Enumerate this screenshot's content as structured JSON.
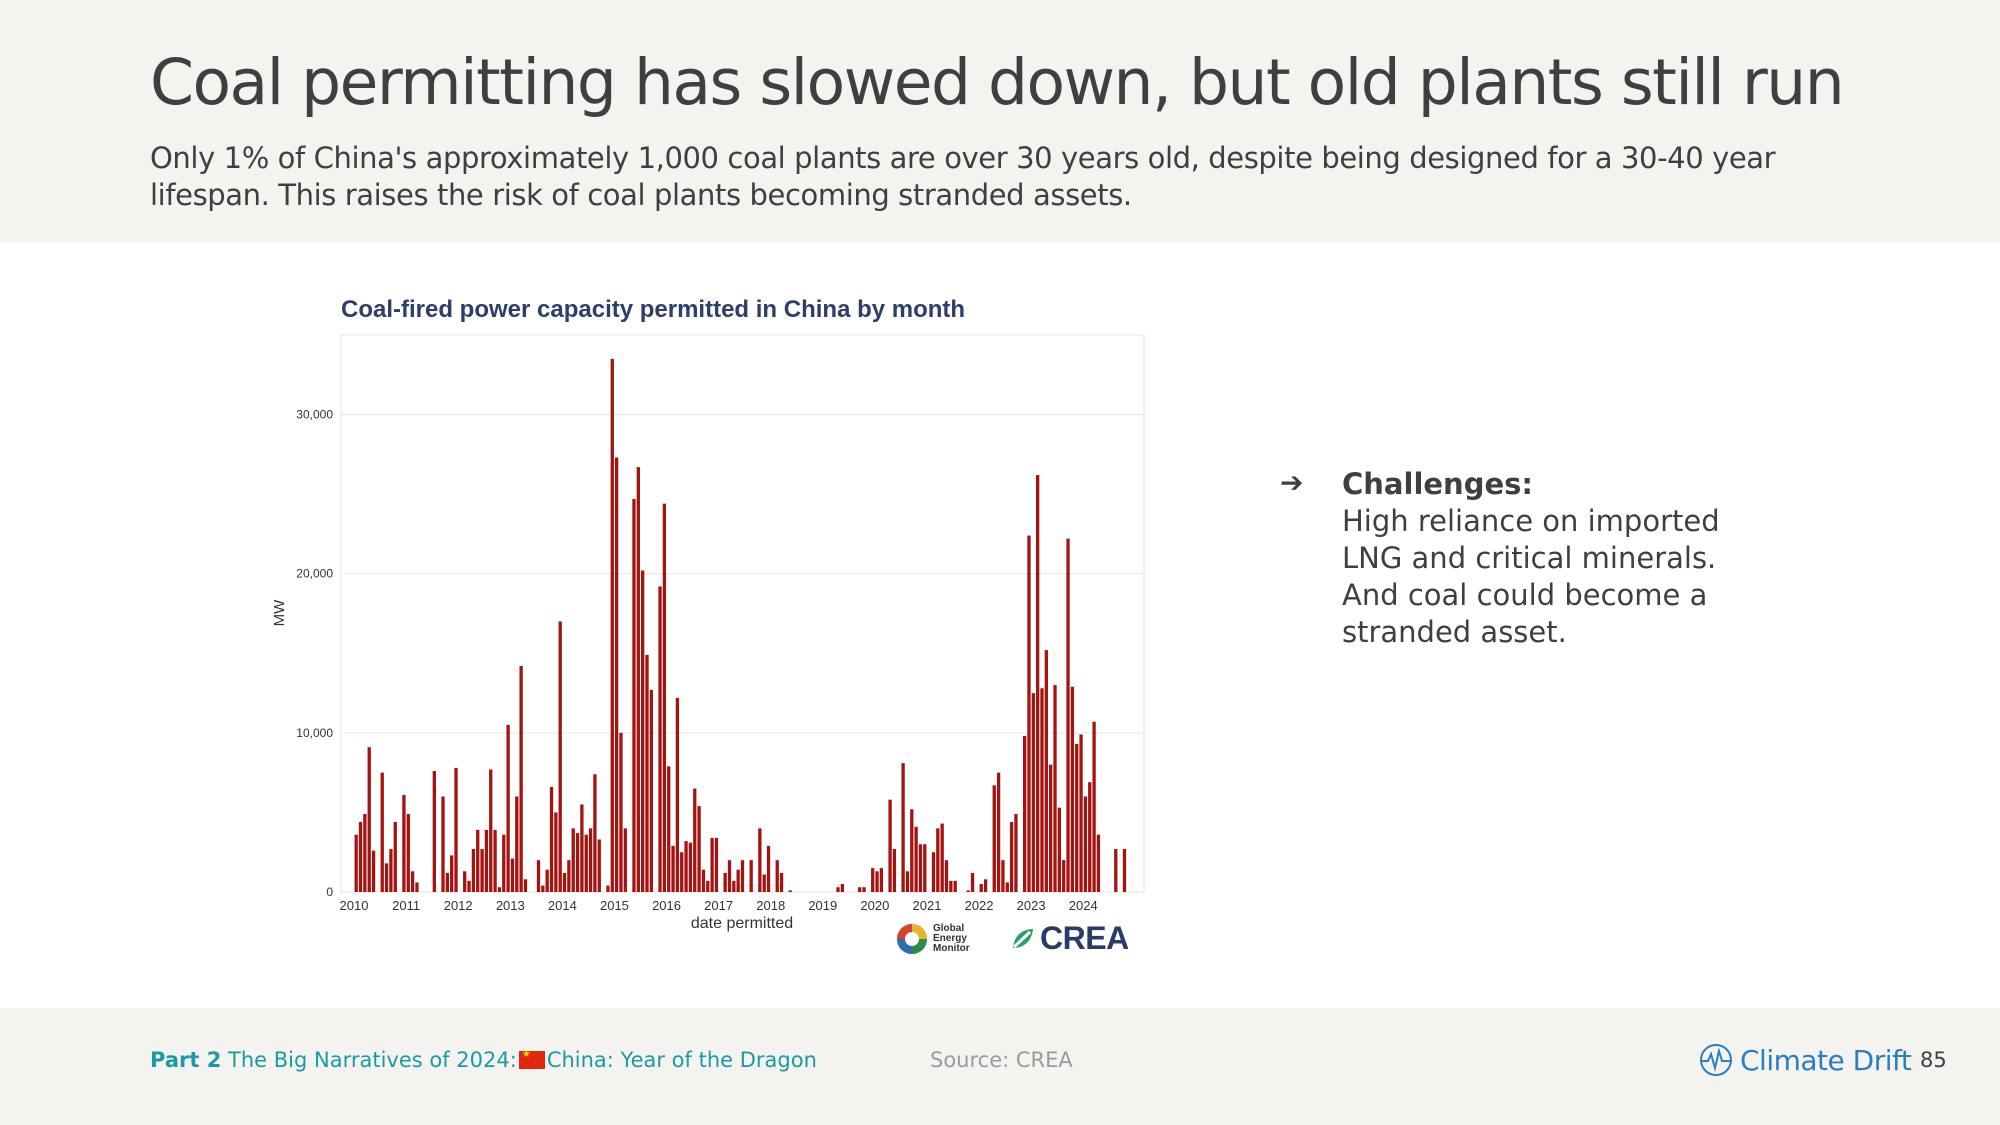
{
  "header": {
    "title": "Coal permitting has slowed down, but old plants still run",
    "subtitle": "Only 1% of China's approximately 1,000 coal plants are over 30 years old, despite being designed for a 30-40 year lifespan. This raises the risk of coal plants becoming stranded assets."
  },
  "chart_data": {
    "type": "bar",
    "title": "Coal-fired power capacity permitted in China by month",
    "xlabel": "date permitted",
    "ylabel": "MW",
    "ylim": [
      0,
      35000
    ],
    "yticks": [
      0,
      10000,
      20000,
      30000
    ],
    "ytick_labels": [
      "0",
      "10,000",
      "20,000",
      "30,000"
    ],
    "x_start": "2010-01",
    "xlim": [
      "2009-10",
      "2025-03"
    ],
    "xtick_labels": [
      "2010",
      "2011",
      "2012",
      "2013",
      "2014",
      "2015",
      "2016",
      "2017",
      "2018",
      "2019",
      "2020",
      "2021",
      "2022",
      "2023",
      "2024"
    ],
    "bar_color": "#a4130f",
    "grid": true,
    "values": [
      3600,
      4400,
      4900,
      9100,
      2600,
      0,
      7500,
      1800,
      2700,
      4400,
      0,
      6100,
      4900,
      1300,
      600,
      0,
      0,
      0,
      7600,
      0,
      6000,
      1200,
      2300,
      7800,
      0,
      1300,
      700,
      2700,
      3900,
      2700,
      3900,
      7700,
      3900,
      300,
      3600,
      10500,
      2100,
      6000,
      14200,
      800,
      0,
      0,
      2000,
      400,
      1400,
      6600,
      5000,
      17000,
      1200,
      2000,
      4000,
      3700,
      5500,
      3600,
      4000,
      7400,
      3300,
      0,
      400,
      33500,
      27300,
      10000,
      4000,
      0,
      24700,
      26700,
      20200,
      14900,
      12700,
      0,
      19200,
      24400,
      7900,
      2900,
      12200,
      2500,
      3200,
      3100,
      6500,
      5400,
      1400,
      700,
      3400,
      3400,
      0,
      1200,
      2000,
      700,
      1400,
      2000,
      0,
      2000,
      0,
      4000,
      1100,
      2900,
      0,
      2000,
      1200,
      0,
      100,
      0,
      0,
      0,
      0,
      0,
      0,
      0,
      0,
      0,
      0,
      300,
      500,
      0,
      0,
      0,
      300,
      300,
      0,
      1500,
      1300,
      1500,
      0,
      5800,
      2700,
      0,
      8100,
      1300,
      5200,
      4100,
      3000,
      3000,
      0,
      2500,
      4000,
      4300,
      2000,
      700,
      700,
      0,
      0,
      100,
      1200,
      0,
      500,
      800,
      0,
      6700,
      7500,
      2000,
      600,
      4400,
      4900,
      0,
      9800,
      22400,
      12500,
      26200,
      12800,
      15200,
      8000,
      13000,
      5300,
      2000,
      22200,
      12900,
      9300,
      9900,
      6000,
      6900,
      10700,
      3600,
      0,
      0,
      0,
      2700,
      0,
      2700
    ]
  },
  "logos": {
    "gem": [
      "Global",
      "Energy",
      "Monitor"
    ],
    "crea": "CREA"
  },
  "challenges": {
    "heading": "Challenges:",
    "text": "High reliance on imported LNG and critical minerals. And coal could become a stranded asset."
  },
  "footer": {
    "part_label": "Part 2",
    "part_title_pre": "The Big Narratives of 2024:",
    "part_title_post": "China: Year of the Dragon",
    "source": "Source: CREA",
    "brand": "Climate Drift",
    "page_number": "85"
  },
  "colors": {
    "header_bg": "#f5f3f0",
    "chart_title": "#2e3e6b",
    "bar": "#a4130f",
    "accent_teal": "#1a9aa6",
    "brand_blue": "#2a7fbf"
  }
}
